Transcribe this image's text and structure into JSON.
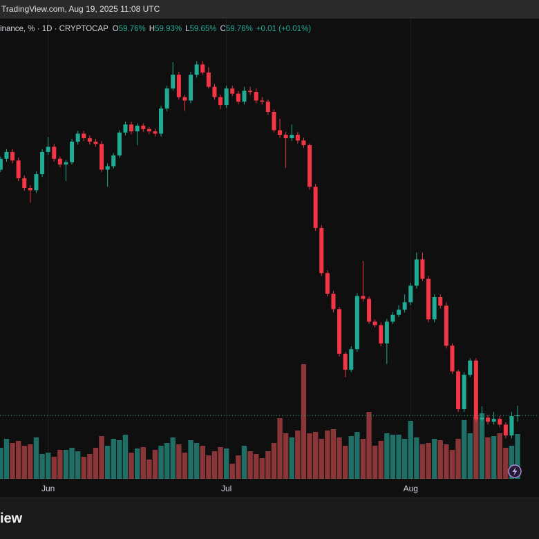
{
  "header": {
    "source": "TradingView.com, Aug 19, 2025 11:08 UTC"
  },
  "chart_data": {
    "type": "candlestick",
    "legend": {
      "symbol": "inance, % · 1D · CRYPTOCAP",
      "ohlc": [
        {
          "key": "O",
          "text": "59.76%"
        },
        {
          "key": "H",
          "text": "59.93%"
        },
        {
          "key": "L",
          "text": "59.65%"
        },
        {
          "key": "C",
          "text": "59.76%"
        }
      ],
      "change": "+0.01 (+0.01%)"
    },
    "x": [
      0,
      1,
      2,
      3,
      4,
      5,
      6,
      7,
      8,
      9,
      10,
      11,
      12,
      13,
      14,
      15,
      16,
      17,
      18,
      19,
      20,
      21,
      22,
      23,
      24,
      25,
      26,
      27,
      28,
      29,
      30,
      31,
      32,
      33,
      34,
      35,
      36,
      37,
      38,
      39,
      40,
      41,
      42,
      43,
      44,
      45,
      46,
      47,
      48,
      49,
      50,
      51,
      52,
      53,
      54,
      55,
      56,
      57,
      58,
      59,
      60,
      61,
      62,
      63,
      64,
      65,
      66,
      67,
      68,
      69,
      70,
      71,
      72,
      73,
      74,
      75,
      76,
      77,
      78,
      79,
      80,
      81,
      82,
      83,
      84,
      85,
      86,
      87
    ],
    "open": [
      64.06,
      64.25,
      64.37,
      64.22,
      63.91,
      63.74,
      63.7,
      63.98,
      64.37,
      64.46,
      64.25,
      64.15,
      64.19,
      64.55,
      64.69,
      64.61,
      64.55,
      64.51,
      64.06,
      64.12,
      64.31,
      64.71,
      64.85,
      64.73,
      64.83,
      64.77,
      64.73,
      64.69,
      65.13,
      65.48,
      65.72,
      65.33,
      65.27,
      65.72,
      65.9,
      65.76,
      65.51,
      65.33,
      65.19,
      65.48,
      65.39,
      65.25,
      65.44,
      65.42,
      65.27,
      65.25,
      65.07,
      64.75,
      64.67,
      64.61,
      64.67,
      64.57,
      64.49,
      63.76,
      63.04,
      62.25,
      61.89,
      61.62,
      60.84,
      60.56,
      60.92,
      61.85,
      61.8,
      61.4,
      61.34,
      61.02,
      61.4,
      61.52,
      61.61,
      61.74,
      62.03,
      62.49,
      62.15,
      61.44,
      61.83,
      61.68,
      60.98,
      60.53,
      59.87,
      60.47,
      60.72,
      59.69,
      59.72,
      59.65,
      59.7,
      59.6,
      59.41,
      59.76
    ],
    "high": [
      64.29,
      64.42,
      64.42,
      64.27,
      63.96,
      63.79,
      64.03,
      64.42,
      64.63,
      64.51,
      64.29,
      64.23,
      64.6,
      64.74,
      64.74,
      64.66,
      64.6,
      64.56,
      64.17,
      64.35,
      64.75,
      64.9,
      64.9,
      64.87,
      64.87,
      64.81,
      64.78,
      65.18,
      65.53,
      65.94,
      65.77,
      65.37,
      65.77,
      65.96,
      65.96,
      65.85,
      65.56,
      65.37,
      65.53,
      65.53,
      65.44,
      65.51,
      65.51,
      65.48,
      65.33,
      65.29,
      65.12,
      64.95,
      64.72,
      64.85,
      64.72,
      64.62,
      64.52,
      63.81,
      63.09,
      62.3,
      61.94,
      61.66,
      60.87,
      60.97,
      61.9,
      62.46,
      61.84,
      61.44,
      61.39,
      61.45,
      61.57,
      61.69,
      61.88,
      62.08,
      62.61,
      62.61,
      62.2,
      61.88,
      61.88,
      61.74,
      61.02,
      60.56,
      60.52,
      60.76,
      60.76,
      59.92,
      59.77,
      59.82,
      59.75,
      59.64,
      59.82,
      59.93
    ],
    "low": [
      64.02,
      64.2,
      64.17,
      63.86,
      63.69,
      63.48,
      63.65,
      63.93,
      64.32,
      64.2,
      64.1,
      63.86,
      64.15,
      64.5,
      64.56,
      64.5,
      64.46,
      64.02,
      63.76,
      64.08,
      64.27,
      64.66,
      64.68,
      64.49,
      64.72,
      64.68,
      64.64,
      64.64,
      65.08,
      65.44,
      65.29,
      65.09,
      65.22,
      65.67,
      65.72,
      65.48,
      65.29,
      65.12,
      65.14,
      65.35,
      65.2,
      65.2,
      65.37,
      65.22,
      65.2,
      65.02,
      64.71,
      64.62,
      64.09,
      64.56,
      64.52,
      64.44,
      63.71,
      62.99,
      62.2,
      61.84,
      61.56,
      60.79,
      60.43,
      60.52,
      60.87,
      61.75,
      61.36,
      61.3,
      60.97,
      60.66,
      61.36,
      61.48,
      61.56,
      61.69,
      61.98,
      62.11,
      61.39,
      61.39,
      61.63,
      60.93,
      60.49,
      59.82,
      59.82,
      60.43,
      59.64,
      59.65,
      59.6,
      59.6,
      59.55,
      59.36,
      59.36,
      59.65
    ],
    "close": [
      64.25,
      64.37,
      64.22,
      63.91,
      63.74,
      63.7,
      63.98,
      64.37,
      64.46,
      64.25,
      64.15,
      64.19,
      64.55,
      64.69,
      64.61,
      64.55,
      64.51,
      64.06,
      64.12,
      64.31,
      64.71,
      64.85,
      64.73,
      64.83,
      64.77,
      64.73,
      64.69,
      65.13,
      65.48,
      65.72,
      65.33,
      65.27,
      65.72,
      65.9,
      65.76,
      65.51,
      65.33,
      65.19,
      65.48,
      65.39,
      65.25,
      65.44,
      65.42,
      65.27,
      65.25,
      65.07,
      64.75,
      64.67,
      64.61,
      64.67,
      64.57,
      64.49,
      63.76,
      63.04,
      62.25,
      61.89,
      61.62,
      60.84,
      60.56,
      60.92,
      61.85,
      61.8,
      61.4,
      61.34,
      61.02,
      61.4,
      61.52,
      61.61,
      61.74,
      62.03,
      62.49,
      62.15,
      61.44,
      61.83,
      61.68,
      60.98,
      60.53,
      59.87,
      60.47,
      60.72,
      59.69,
      59.72,
      59.65,
      59.7,
      59.6,
      59.41,
      59.75,
      59.76
    ],
    "volume": [
      45,
      58,
      52,
      55,
      48,
      50,
      60,
      36,
      38,
      32,
      42,
      42,
      45,
      40,
      32,
      36,
      45,
      62,
      48,
      58,
      56,
      64,
      38,
      44,
      46,
      28,
      42,
      48,
      52,
      60,
      50,
      38,
      56,
      52,
      48,
      34,
      40,
      46,
      44,
      22,
      34,
      48,
      40,
      36,
      30,
      40,
      52,
      88,
      66,
      60,
      70,
      166,
      66,
      68,
      58,
      70,
      72,
      60,
      48,
      62,
      68,
      58,
      97,
      48,
      55,
      66,
      64,
      64,
      58,
      84,
      60,
      50,
      52,
      58,
      56,
      50,
      42,
      58,
      85,
      66,
      90,
      95,
      60,
      62,
      66,
      45,
      48,
      65
    ],
    "xlim": [
      -0.1,
      90.6
    ],
    "xticks": [
      {
        "value": 8,
        "label": "Jun"
      },
      {
        "value": 38,
        "label": "Jul"
      },
      {
        "value": 69,
        "label": "Aug"
      }
    ],
    "ylim": [
      58.65,
      66.69
    ],
    "vlim": [
      0,
      300
    ],
    "grid": true,
    "up_color": "#22ab94",
    "down_color": "#f23645",
    "volume_up_color": "#1f6f66",
    "volume_down_color": "#8a3537"
  },
  "footer": {
    "logo": "iew"
  }
}
